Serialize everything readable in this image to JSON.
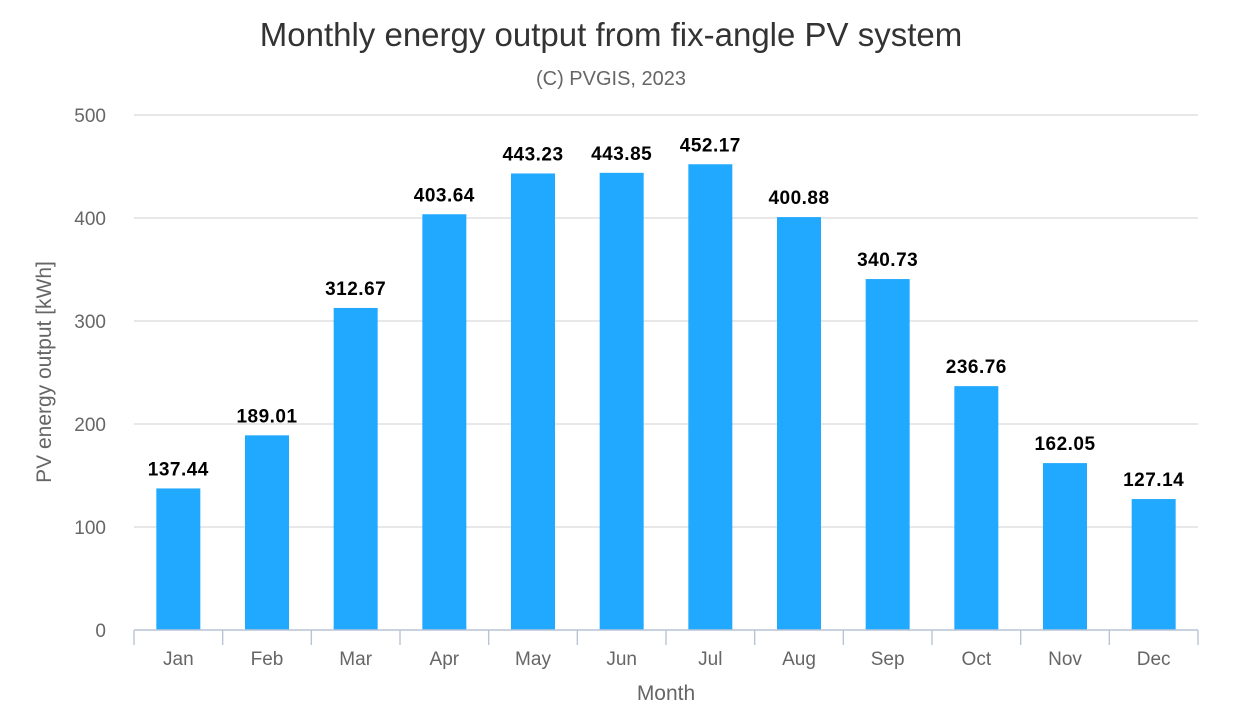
{
  "chart_data": {
    "type": "bar",
    "title": "Monthly energy output from fix-angle PV system",
    "subtitle": "(C) PVGIS, 2023",
    "xlabel": "Month",
    "ylabel": "PV energy output [kWh]",
    "categories": [
      "Jan",
      "Feb",
      "Mar",
      "Apr",
      "May",
      "Jun",
      "Jul",
      "Aug",
      "Sep",
      "Oct",
      "Nov",
      "Dec"
    ],
    "values": [
      137.44,
      189.01,
      312.67,
      403.64,
      443.23,
      443.85,
      452.17,
      400.88,
      340.73,
      236.76,
      162.05,
      127.14
    ],
    "data_labels": [
      "137.44",
      "189.01",
      "312.67",
      "403.64",
      "443.23",
      "443.85",
      "452.17",
      "400.88",
      "340.73",
      "236.76",
      "162.05",
      "127.14"
    ],
    "ylim": [
      0,
      500
    ],
    "yticks": [
      "0",
      "100",
      "200",
      "300",
      "400",
      "500"
    ],
    "grid": true,
    "legend": "none",
    "bar_color": "#21a8ff"
  }
}
